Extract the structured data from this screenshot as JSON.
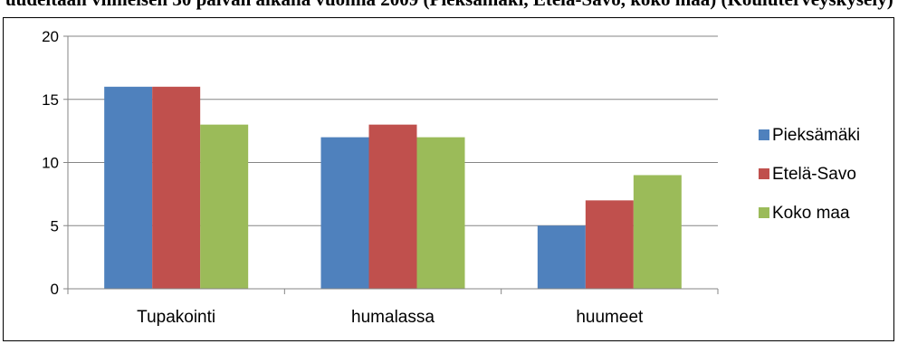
{
  "heading_fragment": "uudeltaan viimeisen 30 päivän aikana vuonna 2009 (Pieksämäki, Etelä-Savo, koko maa) (Kouluterveyskysely)",
  "chart_data": {
    "type": "bar",
    "title": "",
    "xlabel": "",
    "ylabel": "",
    "categories": [
      "Tupakointi",
      "humalassa",
      "huumeet"
    ],
    "ylim": [
      0,
      20
    ],
    "yticks": [
      0,
      5,
      10,
      15,
      20
    ],
    "grid": true,
    "legend_position": "right",
    "series": [
      {
        "name": "Pieksämäki",
        "values": [
          16,
          12,
          5
        ],
        "color": "#4f81bd"
      },
      {
        "name": "Etelä-Savo",
        "values": [
          16,
          13,
          7
        ],
        "color": "#c0504d"
      },
      {
        "name": "Koko maa",
        "values": [
          13,
          12,
          9
        ],
        "color": "#9bbb59"
      }
    ]
  }
}
